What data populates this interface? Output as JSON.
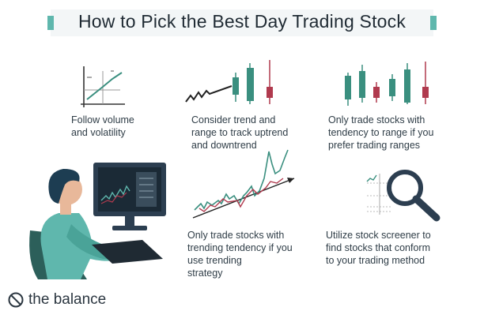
{
  "title": "How to Pick the Best Day Trading Stock",
  "captions": [
    "Follow volume\nand volatility",
    "Consider trend and\nrange to track uptrend\nand downtrend",
    "Only trade stocks with\ntendency to range if you\nprefer trading ranges",
    "Only trade stocks with\ntrending tendency if you\nuse trending\nstrategy",
    "Utilize stock screener to\nfind stocks that conform\nto your trading method"
  ],
  "brand": "the balance",
  "colors": {
    "accent": "#5fb7ad",
    "candle_green": "#3a8f7f",
    "candle_red": "#b03a4e",
    "dark": "#2c3e50"
  },
  "icons": [
    "volume-volatility-chart-icon",
    "trend-range-candles-icon",
    "range-candles-icon",
    "trending-line-chart-icon",
    "magnifier-screener-icon",
    "person-at-computer-illustration",
    "balance-logo-icon"
  ]
}
